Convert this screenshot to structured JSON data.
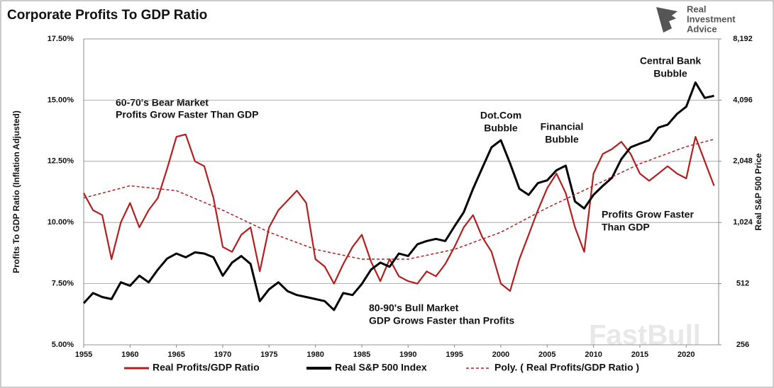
{
  "chart_data": {
    "type": "line",
    "title": "Corporate Profits To GDP Ratio",
    "ylabel": "Profits To GDP Ratio (Inflation Adjusted)",
    "y2label": "Real S&P 500 Price",
    "logo": [
      "Real",
      "Investment",
      "Advice"
    ],
    "watermark": "FastBull",
    "annotations": [
      [
        "60-70's Bear Market",
        "Profits Grow Faster Than GDP"
      ],
      [
        "Dot.Com",
        "Bubble"
      ],
      [
        "Financial",
        "Bubble"
      ],
      [
        "Central Bank",
        "Bubble"
      ],
      [
        "Profits Grow Faster",
        "Than GDP"
      ],
      [
        "80-90's Bull Market",
        "GDP Grows Faster than Profits"
      ]
    ],
    "xlim": [
      1955,
      2023.5
    ],
    "xticks": [
      1955,
      1960,
      1965,
      1970,
      1975,
      1980,
      1985,
      1990,
      1995,
      2000,
      2005,
      2010,
      2015,
      2020
    ],
    "ylim": [
      5,
      17.5
    ],
    "yticks": [
      {
        "value": 5,
        "label": "5.00%"
      },
      {
        "value": 7.5,
        "label": "7.50%"
      },
      {
        "value": 10,
        "label": "10.00%"
      },
      {
        "value": 12.5,
        "label": "12.50%"
      },
      {
        "value": 15,
        "label": "15.00%"
      },
      {
        "value": 17.5,
        "label": "17.50%"
      }
    ],
    "y2lim": [
      256,
      8192
    ],
    "y2log": true,
    "y2ticks": [
      256,
      512,
      {
        "value": 1024,
        "label": "1,024"
      },
      {
        "value": 2048,
        "label": "2,048"
      },
      {
        "value": 4096,
        "label": "4,096"
      },
      {
        "value": 8192,
        "label": "8,192"
      }
    ],
    "grid": true,
    "x": [
      1955,
      1956,
      1957,
      1958,
      1959,
      1960,
      1961,
      1962,
      1963,
      1964,
      1965,
      1966,
      1967,
      1968,
      1969,
      1970,
      1971,
      1972,
      1973,
      1974,
      1975,
      1976,
      1977,
      1978,
      1979,
      1980,
      1981,
      1982,
      1983,
      1984,
      1985,
      1986,
      1987,
      1988,
      1989,
      1990,
      1991,
      1992,
      1993,
      1994,
      1995,
      1996,
      1997,
      1998,
      1999,
      2000,
      2001,
      2002,
      2003,
      2004,
      2005,
      2006,
      2007,
      2008,
      2009,
      2010,
      2011,
      2012,
      2013,
      2014,
      2015,
      2016,
      2017,
      2018,
      2019,
      2020,
      2021,
      2022,
      2023
    ],
    "series": [
      {
        "name": "Real Profits/GDP Ratio",
        "color": "#b21f1f",
        "values": [
          11.2,
          10.5,
          10.3,
          8.5,
          10.0,
          10.8,
          9.8,
          10.5,
          11.0,
          12.2,
          13.5,
          13.6,
          12.5,
          12.3,
          11.0,
          9.0,
          8.8,
          9.5,
          9.8,
          8.0,
          9.8,
          10.5,
          10.9,
          11.3,
          10.8,
          8.5,
          8.2,
          7.5,
          8.3,
          9.0,
          9.5,
          8.4,
          7.6,
          8.5,
          7.8,
          7.6,
          7.5,
          8.0,
          7.8,
          8.3,
          9.0,
          9.8,
          10.3,
          9.4,
          8.8,
          7.5,
          7.2,
          8.5,
          9.5,
          10.5,
          11.4,
          12.0,
          11.2,
          9.8,
          8.8,
          12.0,
          12.8,
          13.0,
          13.3,
          12.8,
          12.0,
          11.7,
          12.0,
          12.3,
          12.0,
          11.8,
          13.5,
          12.5,
          11.5
        ]
      },
      {
        "name": "Real S&P 500 Index",
        "color": "#000000",
        "axis": "y2",
        "values": [
          410,
          460,
          440,
          430,
          520,
          500,
          560,
          520,
          600,
          680,
          720,
          690,
          730,
          720,
          690,
          560,
          650,
          700,
          640,
          420,
          480,
          520,
          470,
          450,
          440,
          430,
          420,
          380,
          460,
          450,
          510,
          600,
          650,
          620,
          720,
          700,
          800,
          830,
          850,
          830,
          980,
          1150,
          1500,
          1900,
          2400,
          2600,
          2000,
          1500,
          1400,
          1600,
          1650,
          1850,
          1950,
          1300,
          1200,
          1400,
          1550,
          1700,
          2100,
          2400,
          2500,
          2600,
          3000,
          3100,
          3500,
          3800,
          5000,
          4200,
          4300
        ]
      },
      {
        "name": "Poly. ( Real Profits/GDP Ratio )",
        "color": "#b21f1f",
        "dashed": true,
        "x": [
          1955,
          1960,
          1965,
          1970,
          1975,
          1980,
          1985,
          1990,
          1995,
          2000,
          2005,
          2010,
          2015,
          2020,
          2023
        ],
        "values": [
          11.0,
          11.5,
          11.3,
          10.5,
          9.6,
          8.9,
          8.5,
          8.5,
          8.9,
          9.6,
          10.6,
          11.5,
          12.4,
          13.1,
          13.4
        ]
      }
    ]
  }
}
